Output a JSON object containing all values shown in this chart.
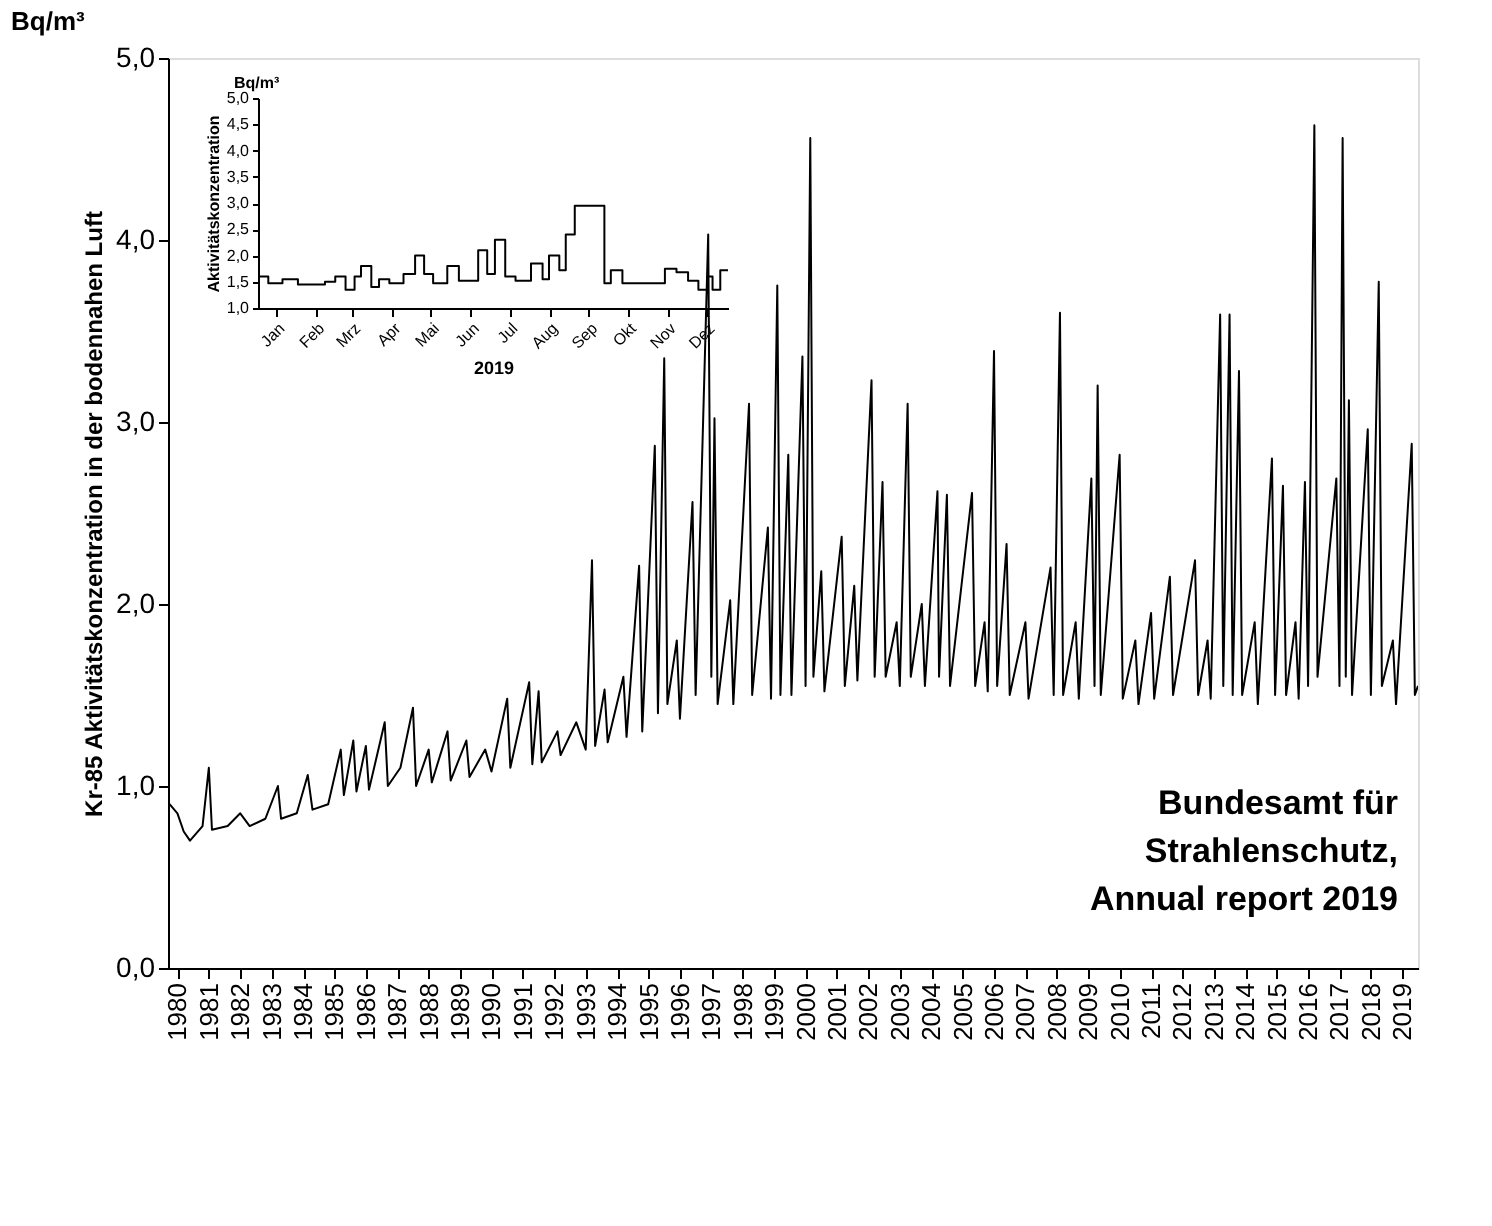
{
  "chart_data": [
    {
      "type": "line",
      "title": "Bq/m³",
      "ylabel": "Kr-85 Aktivitätskonzentration in der bodennahen Luft",
      "annotations": [
        "Bundesamt für\nStrahlenschutz,\nAnnual report 2019"
      ],
      "x": [
        1979.75,
        1980.0,
        1980.2,
        1980.4,
        1980.8,
        1981.0,
        1981.1,
        1981.6,
        1982.0,
        1982.3,
        1982.8,
        1983.2,
        1983.3,
        1983.8,
        1984.15,
        1984.3,
        1984.8,
        1985.2,
        1985.3,
        1985.6,
        1985.7,
        1986.0,
        1986.1,
        1986.6,
        1986.7,
        1987.1,
        1987.5,
        1987.6,
        1988.0,
        1988.1,
        1988.6,
        1988.7,
        1989.2,
        1989.3,
        1989.8,
        1990.0,
        1990.5,
        1990.6,
        1991.2,
        1991.3,
        1991.5,
        1991.6,
        1992.1,
        1992.2,
        1992.7,
        1993.0,
        1993.2,
        1993.3,
        1993.6,
        1993.7,
        1994.2,
        1994.3,
        1994.7,
        1994.8,
        1995.2,
        1995.3,
        1995.5,
        1995.6,
        1995.9,
        1996.0,
        1996.4,
        1996.5,
        1996.9,
        1997.0,
        1997.1,
        1997.2,
        1997.6,
        1997.7,
        1998.2,
        1998.3,
        1998.8,
        1998.9,
        1999.1,
        1999.2,
        1999.45,
        1999.55,
        1999.9,
        2000.0,
        2000.15,
        2000.25,
        2000.5,
        2000.6,
        2001.15,
        2001.25,
        2001.55,
        2001.65,
        2002.1,
        2002.2,
        2002.45,
        2002.55,
        2002.9,
        2003.0,
        2003.25,
        2003.35,
        2003.7,
        2003.8,
        2004.2,
        2004.25,
        2004.5,
        2004.6,
        2005.3,
        2005.4,
        2005.7,
        2005.8,
        2006.0,
        2006.1,
        2006.4,
        2006.5,
        2007.0,
        2007.1,
        2007.8,
        2007.9,
        2008.1,
        2008.2,
        2008.6,
        2008.7,
        2009.1,
        2009.2,
        2009.3,
        2009.4,
        2010.0,
        2010.1,
        2010.5,
        2010.6,
        2011.0,
        2011.1,
        2011.6,
        2011.7,
        2012.4,
        2012.5,
        2012.8,
        2012.9,
        2013.2,
        2013.3,
        2013.5,
        2013.6,
        2013.8,
        2013.9,
        2014.3,
        2014.4,
        2014.85,
        2014.95,
        2015.2,
        2015.3,
        2015.6,
        2015.7,
        2015.9,
        2016.0,
        2016.2,
        2016.3,
        2016.9,
        2017.0,
        2017.1,
        2017.2,
        2017.3,
        2017.4,
        2017.9,
        2018.0,
        2018.25,
        2018.35,
        2018.7,
        2018.8,
        2019.3,
        2019.4,
        2019.5
      ],
      "series": [
        {
          "color": "#000000",
          "values": [
            0.9,
            0.85,
            0.75,
            0.7,
            0.78,
            1.1,
            0.76,
            0.78,
            0.85,
            0.78,
            0.82,
            1.0,
            0.82,
            0.85,
            1.06,
            0.87,
            0.9,
            1.2,
            0.95,
            1.25,
            0.97,
            1.22,
            0.98,
            1.35,
            1.0,
            1.1,
            1.43,
            1.0,
            1.2,
            1.02,
            1.3,
            1.03,
            1.25,
            1.05,
            1.2,
            1.08,
            1.48,
            1.1,
            1.57,
            1.12,
            1.52,
            1.13,
            1.3,
            1.17,
            1.35,
            1.2,
            2.24,
            1.22,
            1.53,
            1.24,
            1.6,
            1.27,
            2.21,
            1.3,
            2.87,
            1.4,
            3.35,
            1.45,
            1.8,
            1.37,
            2.56,
            1.5,
            4.03,
            1.6,
            3.02,
            1.45,
            2.02,
            1.45,
            3.1,
            1.5,
            2.42,
            1.48,
            3.75,
            1.5,
            2.82,
            1.5,
            3.36,
            1.55,
            4.56,
            1.6,
            2.18,
            1.52,
            2.37,
            1.55,
            2.1,
            1.58,
            3.23,
            1.6,
            2.67,
            1.6,
            1.9,
            1.55,
            3.1,
            1.6,
            2.0,
            1.55,
            2.62,
            1.6,
            2.6,
            1.55,
            2.61,
            1.55,
            1.9,
            1.52,
            3.39,
            1.55,
            2.33,
            1.5,
            1.9,
            1.48,
            2.2,
            1.5,
            3.6,
            1.5,
            1.9,
            1.48,
            2.69,
            1.55,
            3.2,
            1.5,
            2.82,
            1.48,
            1.8,
            1.45,
            1.95,
            1.48,
            2.15,
            1.5,
            2.24,
            1.5,
            1.8,
            1.48,
            3.59,
            1.55,
            3.59,
            1.5,
            3.28,
            1.5,
            1.9,
            1.45,
            2.8,
            1.5,
            2.65,
            1.5,
            1.9,
            1.48,
            2.67,
            1.55,
            4.63,
            1.6,
            2.69,
            1.55,
            4.56,
            1.6,
            3.12,
            1.5,
            2.96,
            1.5,
            3.77,
            1.55,
            1.8,
            1.45,
            2.88,
            1.5,
            1.55
          ]
        }
      ],
      "xlim": [
        1979.7,
        2019.5
      ],
      "xticks": [
        1980,
        1981,
        1982,
        1983,
        1984,
        1985,
        1986,
        1987,
        1988,
        1989,
        1990,
        1991,
        1992,
        1993,
        1994,
        1995,
        1996,
        1997,
        1998,
        1999,
        2000,
        2001,
        2002,
        2003,
        2004,
        2005,
        2006,
        2007,
        2008,
        2009,
        2010,
        2011,
        2012,
        2013,
        2014,
        2015,
        2016,
        2017,
        2018,
        2019
      ],
      "ylim": [
        0,
        5
      ],
      "yticks": [
        {
          "value": 0,
          "label": "0,0"
        },
        {
          "value": 1,
          "label": "1,0"
        },
        {
          "value": 2,
          "label": "2,0"
        },
        {
          "value": 3,
          "label": "3,0"
        },
        {
          "value": 4,
          "label": "4,0"
        },
        {
          "value": 5,
          "label": "5,0"
        }
      ],
      "grid": false
    },
    {
      "type": "step",
      "title": "Bq/m³",
      "ylabel": "Aktivitätskonzentration",
      "xlabel": "2019",
      "x": [
        "2019-01-01",
        "2019-01-09",
        "2019-01-20",
        "2019-02-01",
        "2019-02-22",
        "2019-03-02",
        "2019-03-10",
        "2019-03-17",
        "2019-03-22",
        "2019-03-30",
        "2019-04-05",
        "2019-04-13",
        "2019-04-24",
        "2019-05-03",
        "2019-05-10",
        "2019-05-17",
        "2019-05-28",
        "2019-06-06",
        "2019-06-21",
        "2019-06-28",
        "2019-07-04",
        "2019-07-12",
        "2019-07-20",
        "2019-08-01",
        "2019-08-10",
        "2019-08-15",
        "2019-08-23",
        "2019-08-28",
        "2019-09-04",
        "2019-09-27",
        "2019-10-02",
        "2019-10-11",
        "2019-11-13",
        "2019-11-22",
        "2019-12-01",
        "2019-12-09",
        "2019-12-16",
        "2019-12-20",
        "2019-12-26",
        "2020-01-01"
      ],
      "series": [
        {
          "color": "#000000",
          "values": [
            1.6,
            1.47,
            1.55,
            1.45,
            1.5,
            1.6,
            1.35,
            1.6,
            1.8,
            1.4,
            1.55,
            1.47,
            1.65,
            2.0,
            1.65,
            1.47,
            1.8,
            1.52,
            2.1,
            1.65,
            2.3,
            1.6,
            1.52,
            1.85,
            1.55,
            2.0,
            1.72,
            2.4,
            2.95,
            1.47,
            1.72,
            1.47,
            1.75,
            1.68,
            1.52,
            1.35,
            1.6,
            1.35,
            1.72,
            1.72
          ]
        }
      ],
      "xlim": [
        "2019-01-01",
        "2020-01-01"
      ],
      "xticks": [
        {
          "value": "2019-01-15",
          "label": "Jan"
        },
        {
          "value": "2019-02-15",
          "label": "Feb"
        },
        {
          "value": "2019-03-15",
          "label": "Mrz"
        },
        {
          "value": "2019-04-15",
          "label": "Apr"
        },
        {
          "value": "2019-05-15",
          "label": "Mai"
        },
        {
          "value": "2019-06-15",
          "label": "Jun"
        },
        {
          "value": "2019-07-15",
          "label": "Jul"
        },
        {
          "value": "2019-08-15",
          "label": "Aug"
        },
        {
          "value": "2019-09-15",
          "label": "Sep"
        },
        {
          "value": "2019-10-15",
          "label": "Okt"
        },
        {
          "value": "2019-11-15",
          "label": "Nov"
        },
        {
          "value": "2019-12-15",
          "label": "Dez"
        }
      ],
      "ylim": [
        1,
        5
      ],
      "yticks": [
        {
          "value": 1,
          "label": "1,0"
        },
        {
          "value": 1.5,
          "label": "1,5"
        },
        {
          "value": 2,
          "label": "2,0"
        },
        {
          "value": 2.5,
          "label": "2,5"
        },
        {
          "value": 3,
          "label": "3,0"
        },
        {
          "value": 3.5,
          "label": "3,5"
        },
        {
          "value": 4,
          "label": "4,0"
        },
        {
          "value": 4.5,
          "label": "4,5"
        },
        {
          "value": 5,
          "label": "5,0"
        }
      ],
      "grid": false
    }
  ]
}
